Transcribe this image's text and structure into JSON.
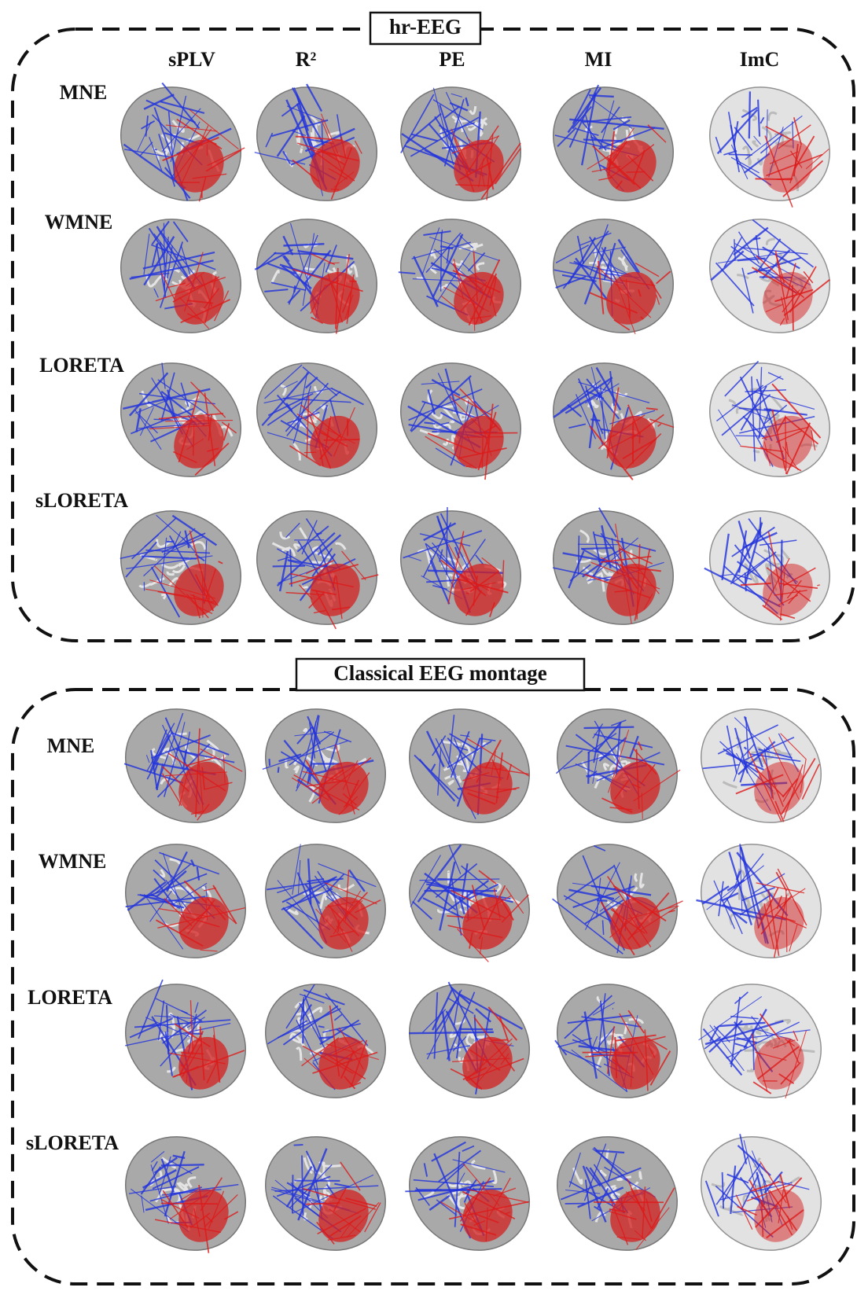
{
  "panels": [
    {
      "title": "hr-EEG",
      "columns": [
        "sPLV",
        "R²",
        "PE",
        "MI",
        "ImC"
      ],
      "rows": [
        "MNE",
        "WMNE",
        "LORETA",
        "sLORETA"
      ]
    },
    {
      "title": "Classical EEG montage",
      "rows": [
        "MNE",
        "WMNE",
        "LORETA",
        "sLORETA"
      ]
    }
  ]
}
